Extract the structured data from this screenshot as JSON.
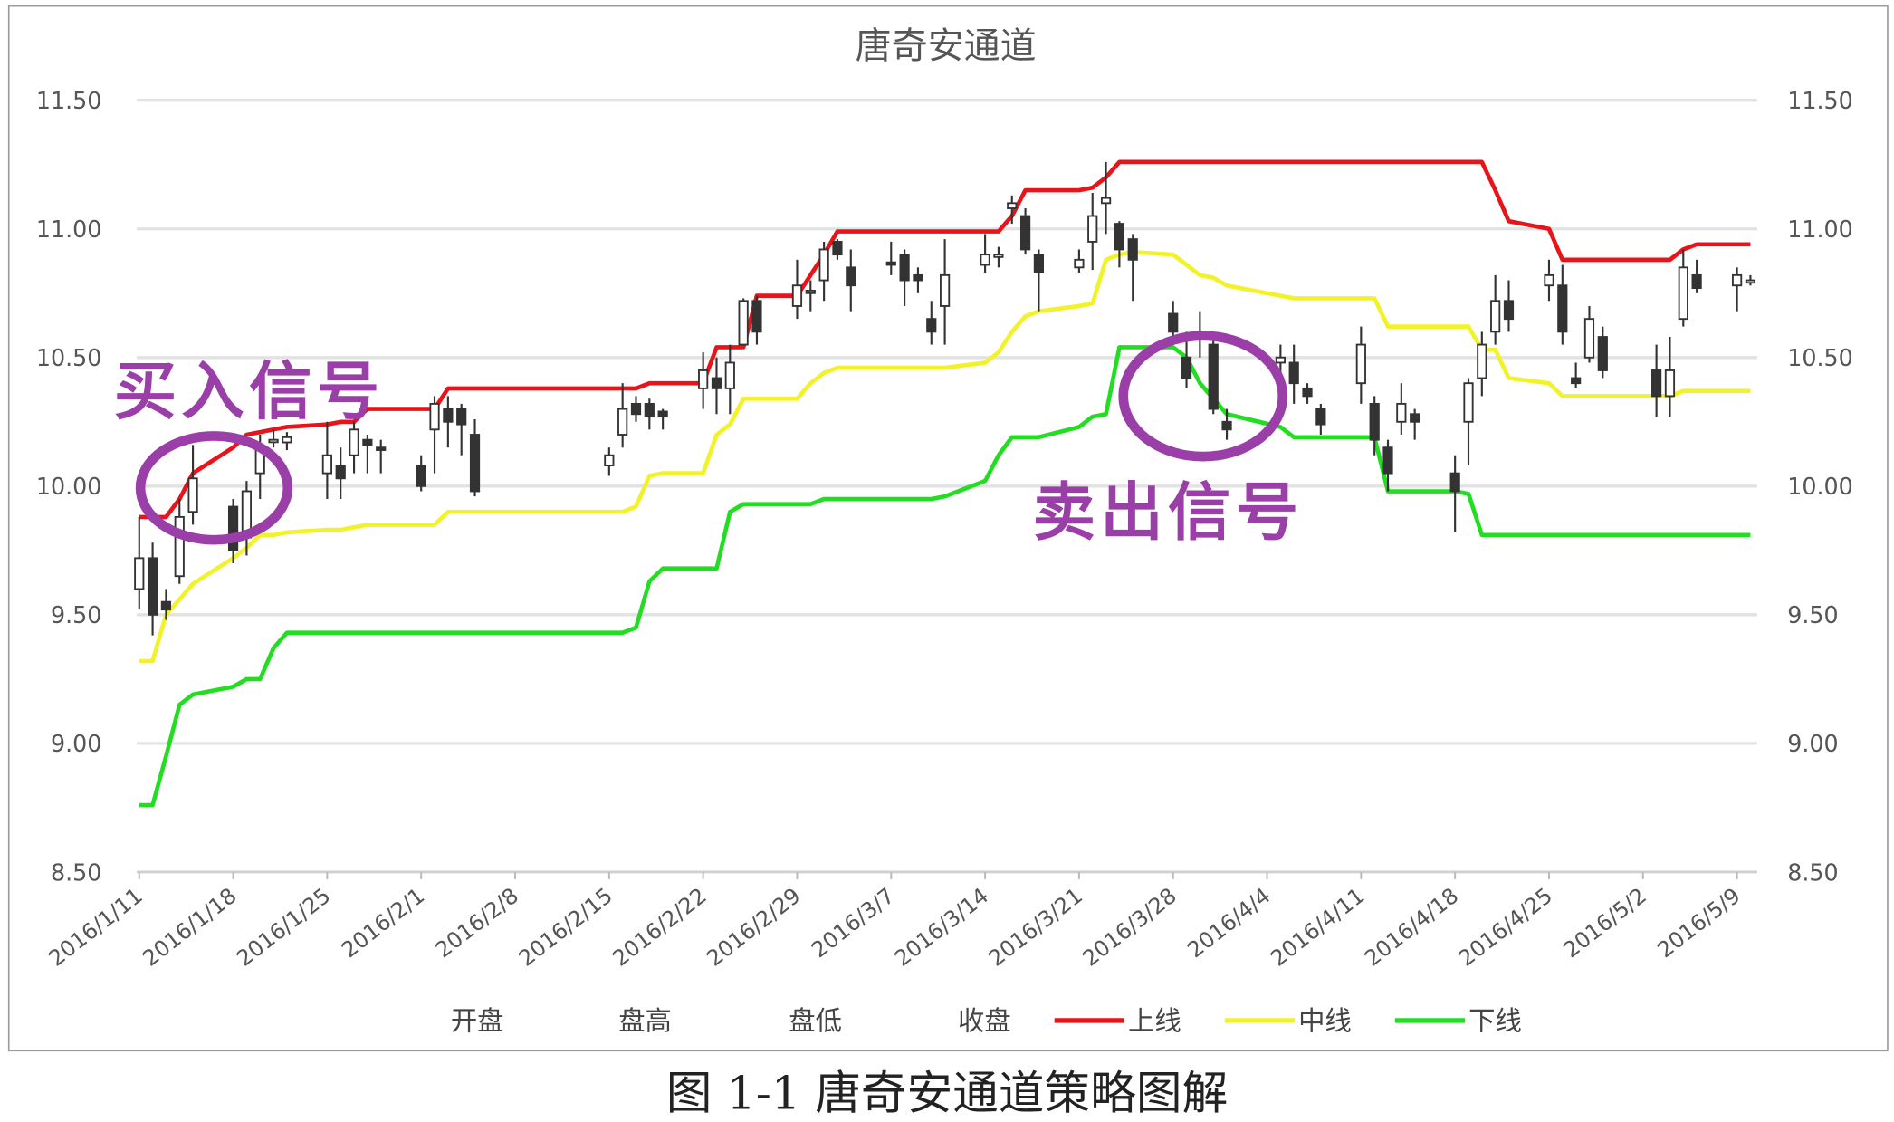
{
  "chart_data": {
    "type": "candlestick-with-lines",
    "title": "唐奇安通道",
    "caption": "图 1-1 唐奇安通道策略图解",
    "ylim": [
      8.5,
      11.5
    ],
    "yticks": [
      "8.50",
      "9.00",
      "9.50",
      "10.00",
      "10.50",
      "11.00",
      "11.50"
    ],
    "y_axis_both_sides": true,
    "grid": "horizontal",
    "x_axis": "date",
    "xticks": [
      "2016/1/11",
      "2016/1/18",
      "2016/1/25",
      "2016/2/1",
      "2016/2/8",
      "2016/2/15",
      "2016/2/22",
      "2016/2/29",
      "2016/3/7",
      "2016/3/14",
      "2016/3/21",
      "2016/3/28",
      "2016/4/4",
      "2016/4/11",
      "2016/4/18",
      "2016/4/25",
      "2016/5/2",
      "2016/5/9"
    ],
    "legend_position": "bottom",
    "legend": [
      {
        "label": "开盘",
        "marker": "none"
      },
      {
        "label": "盘高",
        "marker": "none"
      },
      {
        "label": "盘低",
        "marker": "none"
      },
      {
        "label": "收盘",
        "marker": "none"
      },
      {
        "label": "上线",
        "color": "#e8141a"
      },
      {
        "label": "中线",
        "color": "#f2f22a"
      },
      {
        "label": "下线",
        "color": "#22dd22"
      }
    ],
    "annotations": [
      {
        "text": "买入信号",
        "date": "2016-01-15",
        "value": 10.0,
        "color": "#9b3fa8"
      },
      {
        "text": "卖出信号",
        "date": "2016-03-30",
        "value": 10.35,
        "color": "#9b3fa8"
      }
    ],
    "candle_fields": [
      "date",
      "open",
      "high",
      "low",
      "close"
    ],
    "candles": [
      [
        "2016-01-11",
        9.6,
        9.88,
        9.52,
        9.72
      ],
      [
        "2016-01-12",
        9.72,
        9.78,
        9.42,
        9.5
      ],
      [
        "2016-01-13",
        9.55,
        9.6,
        9.48,
        9.52
      ],
      [
        "2016-01-14",
        9.65,
        9.95,
        9.62,
        9.88
      ],
      [
        "2016-01-15",
        9.9,
        10.16,
        9.85,
        10.03
      ],
      [
        "2016-01-18",
        9.92,
        9.95,
        9.7,
        9.75
      ],
      [
        "2016-01-19",
        9.8,
        10.02,
        9.73,
        9.98
      ],
      [
        "2016-01-20",
        10.05,
        10.2,
        9.95,
        10.15
      ],
      [
        "2016-01-21",
        10.18,
        10.22,
        10.15,
        10.18
      ],
      [
        "2016-01-22",
        10.17,
        10.21,
        10.14,
        10.19
      ],
      [
        "2016-01-25",
        10.05,
        10.25,
        9.95,
        10.12
      ],
      [
        "2016-01-26",
        10.08,
        10.15,
        9.95,
        10.03
      ],
      [
        "2016-01-27",
        10.12,
        10.25,
        10.05,
        10.22
      ],
      [
        "2016-01-28",
        10.18,
        10.2,
        10.05,
        10.16
      ],
      [
        "2016-01-29",
        10.15,
        10.18,
        10.05,
        10.14
      ],
      [
        "2016-02-01",
        10.08,
        10.12,
        9.98,
        10.0
      ],
      [
        "2016-02-02",
        10.22,
        10.35,
        10.05,
        10.32
      ],
      [
        "2016-02-03",
        10.3,
        10.35,
        10.15,
        10.25
      ],
      [
        "2016-02-04",
        10.3,
        10.32,
        10.12,
        10.24
      ],
      [
        "2016-02-05",
        10.2,
        10.26,
        9.96,
        9.98
      ],
      [
        "2016-02-15",
        10.08,
        10.15,
        10.04,
        10.12
      ],
      [
        "2016-02-16",
        10.2,
        10.4,
        10.15,
        10.3
      ],
      [
        "2016-02-17",
        10.32,
        10.35,
        10.25,
        10.28
      ],
      [
        "2016-02-18",
        10.32,
        10.34,
        10.22,
        10.27
      ],
      [
        "2016-02-19",
        10.29,
        10.3,
        10.22,
        10.27
      ],
      [
        "2016-02-22",
        10.38,
        10.52,
        10.3,
        10.45
      ],
      [
        "2016-02-23",
        10.42,
        10.5,
        10.28,
        10.38
      ],
      [
        "2016-02-24",
        10.38,
        10.55,
        10.28,
        10.48
      ],
      [
        "2016-02-25",
        10.55,
        10.73,
        10.55,
        10.72
      ],
      [
        "2016-02-26",
        10.72,
        10.74,
        10.55,
        10.6
      ],
      [
        "2016-02-29",
        10.7,
        10.88,
        10.65,
        10.78
      ],
      [
        "2016-03-01",
        10.75,
        10.8,
        10.68,
        10.76
      ],
      [
        "2016-03-02",
        10.8,
        10.95,
        10.72,
        10.92
      ],
      [
        "2016-03-03",
        10.95,
        10.96,
        10.88,
        10.9
      ],
      [
        "2016-03-04",
        10.85,
        10.92,
        10.68,
        10.78
      ],
      [
        "2016-03-07",
        10.87,
        10.95,
        10.82,
        10.86
      ],
      [
        "2016-03-08",
        10.9,
        10.92,
        10.7,
        10.8
      ],
      [
        "2016-03-09",
        10.82,
        10.85,
        10.75,
        10.8
      ],
      [
        "2016-03-10",
        10.65,
        10.72,
        10.55,
        10.6
      ],
      [
        "2016-03-11",
        10.7,
        10.96,
        10.55,
        10.82
      ],
      [
        "2016-03-14",
        10.86,
        10.98,
        10.83,
        10.9
      ],
      [
        "2016-03-15",
        10.9,
        10.93,
        10.85,
        10.9
      ],
      [
        "2016-03-16",
        11.08,
        11.13,
        11.02,
        11.1
      ],
      [
        "2016-03-17",
        11.05,
        11.08,
        10.9,
        10.92
      ],
      [
        "2016-03-18",
        10.9,
        10.92,
        10.68,
        10.83
      ],
      [
        "2016-03-21",
        10.85,
        10.92,
        10.83,
        10.88
      ],
      [
        "2016-03-22",
        10.95,
        11.14,
        10.84,
        11.05
      ],
      [
        "2016-03-23",
        11.1,
        11.26,
        10.98,
        11.12
      ],
      [
        "2016-03-24",
        11.02,
        11.03,
        10.85,
        10.92
      ],
      [
        "2016-03-25",
        10.96,
        10.98,
        10.72,
        10.88
      ],
      [
        "2016-03-28",
        10.67,
        10.72,
        10.55,
        10.6
      ],
      [
        "2016-03-29",
        10.5,
        10.6,
        10.38,
        10.42
      ],
      [
        "2016-03-30",
        10.58,
        10.68,
        10.5,
        10.6
      ],
      [
        "2016-03-31",
        10.55,
        10.58,
        10.28,
        10.3
      ],
      [
        "2016-04-01",
        10.25,
        10.3,
        10.18,
        10.22
      ],
      [
        "2016-04-05",
        10.48,
        10.55,
        10.4,
        10.5
      ],
      [
        "2016-04-06",
        10.48,
        10.55,
        10.32,
        10.4
      ],
      [
        "2016-04-07",
        10.38,
        10.4,
        10.32,
        10.35
      ],
      [
        "2016-04-08",
        10.3,
        10.32,
        10.2,
        10.24
      ],
      [
        "2016-04-11",
        10.4,
        10.62,
        10.32,
        10.55
      ],
      [
        "2016-04-12",
        10.32,
        10.35,
        10.12,
        10.18
      ],
      [
        "2016-04-13",
        10.15,
        10.18,
        9.98,
        10.05
      ],
      [
        "2016-04-14",
        10.25,
        10.4,
        10.2,
        10.32
      ],
      [
        "2016-04-15",
        10.28,
        10.3,
        10.18,
        10.25
      ],
      [
        "2016-04-18",
        10.05,
        10.12,
        9.82,
        9.98
      ],
      [
        "2016-04-19",
        10.25,
        10.42,
        10.08,
        10.4
      ],
      [
        "2016-04-20",
        10.42,
        10.6,
        10.35,
        10.55
      ],
      [
        "2016-04-21",
        10.6,
        10.82,
        10.55,
        10.72
      ],
      [
        "2016-04-22",
        10.72,
        10.8,
        10.6,
        10.65
      ],
      [
        "2016-04-25",
        10.78,
        10.88,
        10.72,
        10.82
      ],
      [
        "2016-04-26",
        10.78,
        10.86,
        10.55,
        10.6
      ],
      [
        "2016-04-27",
        10.42,
        10.48,
        10.38,
        10.4
      ],
      [
        "2016-04-28",
        10.5,
        10.7,
        10.48,
        10.65
      ],
      [
        "2016-04-29",
        10.58,
        10.62,
        10.42,
        10.45
      ],
      [
        "2016-05-03",
        10.45,
        10.55,
        10.27,
        10.35
      ],
      [
        "2016-05-04",
        10.35,
        10.58,
        10.27,
        10.45
      ],
      [
        "2016-05-05",
        10.65,
        10.92,
        10.62,
        10.85
      ],
      [
        "2016-05-06",
        10.82,
        10.88,
        10.75,
        10.77
      ],
      [
        "2016-05-09",
        10.78,
        10.85,
        10.68,
        10.82
      ],
      [
        "2016-05-10",
        10.8,
        10.82,
        10.78,
        10.8
      ]
    ],
    "series": [
      {
        "name": "上线",
        "color": "#e8141a",
        "values": [
          9.88,
          9.88,
          9.88,
          9.95,
          10.05,
          10.15,
          10.2,
          10.21,
          10.22,
          10.23,
          10.24,
          10.25,
          10.25,
          10.3,
          10.3,
          10.3,
          10.3,
          10.38,
          10.38,
          10.38,
          10.38,
          10.38,
          10.38,
          10.4,
          10.4,
          10.4,
          10.54,
          10.54,
          10.54,
          10.74,
          10.74,
          10.82,
          10.9,
          10.99,
          10.99,
          10.99,
          10.99,
          10.99,
          10.99,
          10.99,
          10.99,
          10.99,
          11.05,
          11.15,
          11.15,
          11.15,
          11.16,
          11.2,
          11.26,
          11.26,
          11.26,
          11.26,
          11.26,
          11.26,
          11.26,
          11.26,
          11.26,
          11.26,
          11.26,
          11.26,
          11.26,
          11.26,
          11.26,
          11.26,
          11.26,
          11.26,
          11.26,
          11.15,
          11.03,
          11.0,
          10.88,
          10.88,
          10.88,
          10.88,
          10.88,
          10.88,
          10.92,
          10.94,
          10.94,
          10.94
        ]
      },
      {
        "name": "中线",
        "color": "#f2f22a",
        "values": [
          9.32,
          9.32,
          9.5,
          9.56,
          9.62,
          9.72,
          9.76,
          9.81,
          9.81,
          9.82,
          9.83,
          9.83,
          9.84,
          9.85,
          9.85,
          9.85,
          9.85,
          9.9,
          9.9,
          9.9,
          9.9,
          9.9,
          9.92,
          10.04,
          10.05,
          10.05,
          10.2,
          10.24,
          10.34,
          10.34,
          10.34,
          10.4,
          10.44,
          10.46,
          10.46,
          10.46,
          10.46,
          10.46,
          10.46,
          10.46,
          10.48,
          10.52,
          10.6,
          10.66,
          10.68,
          10.7,
          10.71,
          10.88,
          10.9,
          10.91,
          10.9,
          10.86,
          10.82,
          10.81,
          10.78,
          10.74,
          10.73,
          10.73,
          10.73,
          10.73,
          10.73,
          10.62,
          10.62,
          10.62,
          10.62,
          10.62,
          10.53,
          10.53,
          10.42,
          10.4,
          10.35,
          10.35,
          10.35,
          10.35,
          10.35,
          10.35,
          10.37,
          10.37,
          10.37,
          10.37
        ]
      },
      {
        "name": "下线",
        "color": "#22dd22",
        "values": [
          8.76,
          8.76,
          8.95,
          9.15,
          9.19,
          9.22,
          9.25,
          9.25,
          9.37,
          9.43,
          9.43,
          9.43,
          9.43,
          9.43,
          9.43,
          9.43,
          9.43,
          9.43,
          9.43,
          9.43,
          9.43,
          9.43,
          9.45,
          9.63,
          9.68,
          9.68,
          9.68,
          9.9,
          9.93,
          9.93,
          9.93,
          9.93,
          9.95,
          9.95,
          9.95,
          9.95,
          9.95,
          9.95,
          9.95,
          9.96,
          10.02,
          10.12,
          10.19,
          10.19,
          10.19,
          10.23,
          10.27,
          10.28,
          10.54,
          10.54,
          10.54,
          10.5,
          10.4,
          10.34,
          10.28,
          10.23,
          10.19,
          10.19,
          10.19,
          10.19,
          10.19,
          9.98,
          9.98,
          9.98,
          9.98,
          9.97,
          9.81,
          9.81,
          9.81,
          9.81,
          9.81,
          9.81,
          9.81,
          9.81,
          9.81,
          9.81,
          9.81,
          9.81,
          9.81,
          9.81
        ]
      }
    ]
  }
}
